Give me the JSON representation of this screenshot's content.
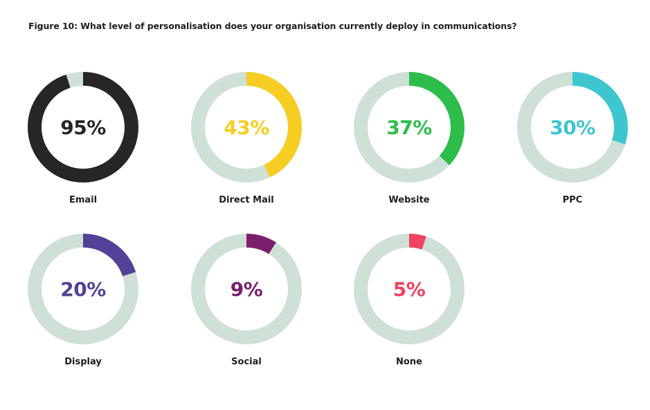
{
  "chart_title": "Figure 10: What level of personalisation does your organisation currently deploy in communications?",
  "track_color": "#cfe0d6",
  "chart_data": {
    "type": "pie",
    "title": "Figure 10: What level of personalisation does your organisation currently deploy in communications?",
    "unit": "%",
    "items": [
      {
        "label": "Email",
        "value": 95,
        "display": "95%",
        "color": "#262626"
      },
      {
        "label": "Direct Mail",
        "value": 43,
        "display": "43%",
        "color": "#f6cd23"
      },
      {
        "label": "Website",
        "value": 37,
        "display": "37%",
        "color": "#2dbd4a"
      },
      {
        "label": "PPC",
        "value": 30,
        "display": "30%",
        "color": "#3ec6d0"
      },
      {
        "label": "Display",
        "value": 20,
        "display": "20%",
        "color": "#524196"
      },
      {
        "label": "Social",
        "value": 9,
        "display": "9%",
        "color": "#7b1f6d"
      },
      {
        "label": "None",
        "value": 5,
        "display": "5%",
        "color": "#ee4460"
      }
    ]
  }
}
